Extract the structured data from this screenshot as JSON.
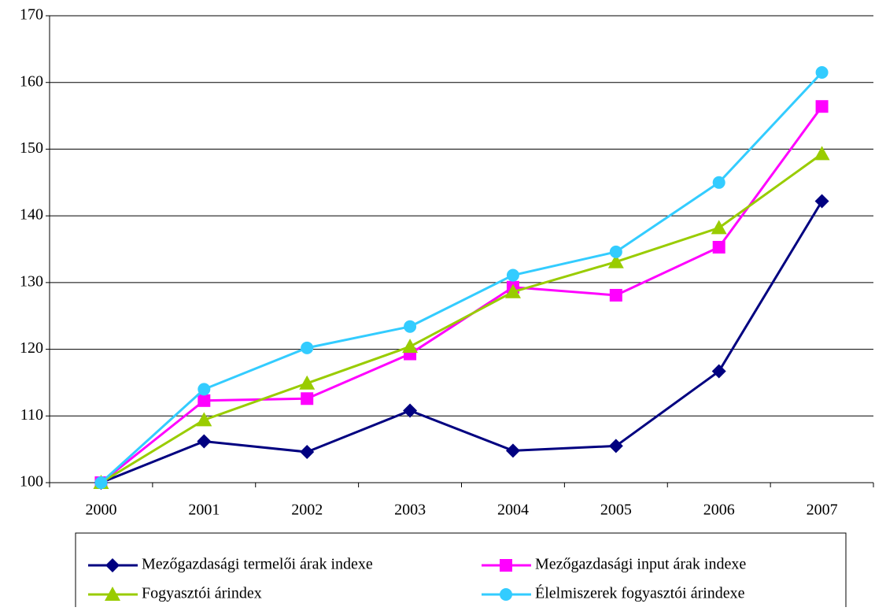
{
  "chart_data": {
    "type": "line",
    "categories": [
      "2000",
      "2001",
      "2002",
      "2003",
      "2004",
      "2005",
      "2006",
      "2007"
    ],
    "series": [
      {
        "name": "Mezőgazdasági termelői árak indexe",
        "color": "#000080",
        "marker": "diamond",
        "values": [
          100,
          106.2,
          104.6,
          110.8,
          104.8,
          105.5,
          116.7,
          142.2
        ]
      },
      {
        "name": "Mezőgazdasági input árak indexe",
        "color": "#ff00ff",
        "marker": "square",
        "values": [
          100,
          112.3,
          112.6,
          119.3,
          129.3,
          128.1,
          135.3,
          156.4
        ]
      },
      {
        "name": "Fogyasztói árindex",
        "color": "#99cc00",
        "marker": "triangle",
        "values": [
          100,
          109.4,
          114.9,
          120.4,
          128.6,
          133.1,
          138.2,
          149.3
        ]
      },
      {
        "name": "Élelmiszerek fogyasztói árindexe",
        "color": "#33ccff",
        "marker": "circle",
        "values": [
          100,
          114,
          120.2,
          123.4,
          131.1,
          134.6,
          145,
          161.5
        ]
      }
    ],
    "ylim": [
      100,
      170
    ],
    "yticks": [
      100,
      110,
      120,
      130,
      140,
      150,
      160,
      170
    ],
    "grid": true,
    "legend": "bottom"
  }
}
